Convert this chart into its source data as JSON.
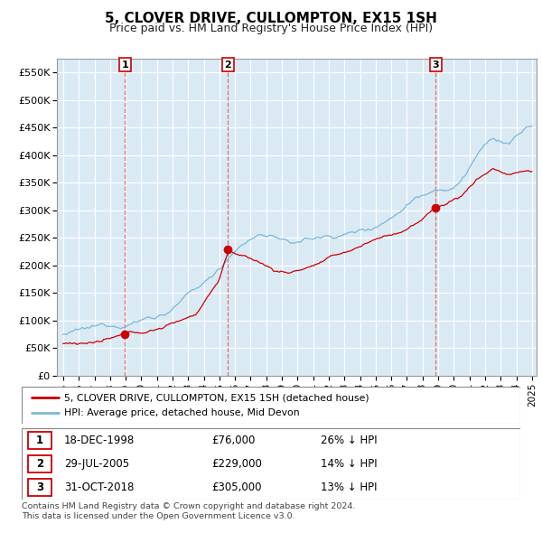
{
  "title": "5, CLOVER DRIVE, CULLOMPTON, EX15 1SH",
  "subtitle": "Price paid vs. HM Land Registry's House Price Index (HPI)",
  "hpi_color": "#7ab8d9",
  "hpi_fill_color": "#daeaf5",
  "price_color": "#cc0000",
  "marker_color": "#cc0000",
  "dashed_color": "#e06060",
  "ylim": [
    0,
    575000
  ],
  "yticks": [
    0,
    50000,
    100000,
    150000,
    200000,
    250000,
    300000,
    350000,
    400000,
    450000,
    500000,
    550000
  ],
  "ytick_labels": [
    "£0",
    "£50K",
    "£100K",
    "£150K",
    "£200K",
    "£250K",
    "£300K",
    "£350K",
    "£400K",
    "£450K",
    "£500K",
    "£550K"
  ],
  "xlim_start": 1994.6,
  "xlim_end": 2025.3,
  "transactions": [
    {
      "label": "1",
      "date_year": 1998.96,
      "price": 76000
    },
    {
      "label": "2",
      "date_year": 2005.55,
      "price": 229000
    },
    {
      "label": "3",
      "date_year": 2018.83,
      "price": 305000
    }
  ],
  "legend_entries": [
    "5, CLOVER DRIVE, CULLOMPTON, EX15 1SH (detached house)",
    "HPI: Average price, detached house, Mid Devon"
  ],
  "table_rows": [
    {
      "num": "1",
      "date": "18-DEC-1998",
      "price": "£76,000",
      "hpi": "26% ↓ HPI"
    },
    {
      "num": "2",
      "date": "29-JUL-2005",
      "price": "£229,000",
      "hpi": "14% ↓ HPI"
    },
    {
      "num": "3",
      "date": "31-OCT-2018",
      "price": "£305,000",
      "hpi": "13% ↓ HPI"
    }
  ],
  "footnote": "Contains HM Land Registry data © Crown copyright and database right 2024.\nThis data is licensed under the Open Government Licence v3.0."
}
